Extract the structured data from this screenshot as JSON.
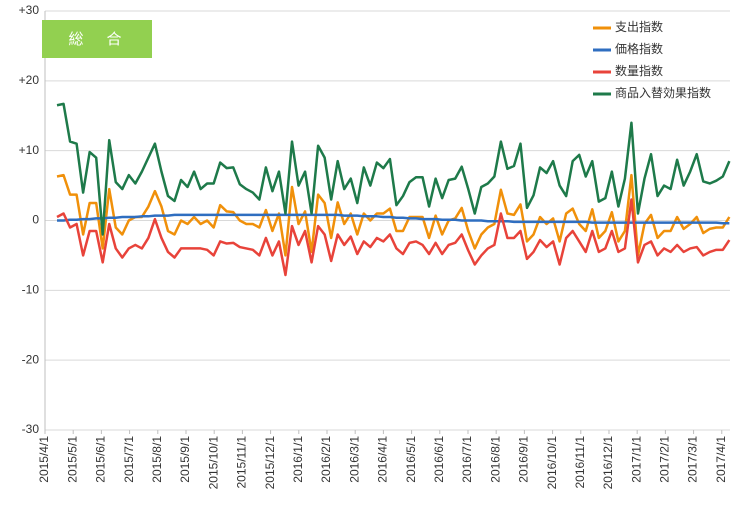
{
  "chart_data": {
    "type": "line",
    "title": "総　合",
    "categories": [
      null,
      null,
      null,
      null,
      null,
      null,
      null,
      null,
      null,
      null,
      null,
      null,
      null,
      null,
      null,
      null,
      null,
      null,
      null,
      null,
      null,
      null,
      null,
      null,
      null,
      null,
      null,
      null,
      null,
      null,
      null,
      null,
      null,
      null,
      null,
      null,
      null,
      null,
      null,
      null,
      null,
      null,
      null,
      null,
      null,
      null,
      null,
      null,
      null,
      null,
      null,
      null,
      null,
      null,
      null,
      null,
      null,
      null,
      null,
      null,
      null,
      null,
      null,
      null,
      null,
      null,
      null,
      null,
      null,
      null,
      null,
      null,
      null,
      null,
      null,
      null,
      null,
      null,
      null,
      null,
      null,
      null,
      null,
      null,
      null,
      null,
      null,
      null,
      null,
      null,
      null,
      null,
      null,
      null,
      null,
      null,
      null,
      null,
      null,
      null,
      null,
      null,
      null,
      null
    ],
    "xlim": [
      -1.84,
      103.1
    ],
    "xticks": [
      {
        "value": -1.84,
        "label": "2015/4/1"
      },
      {
        "value": 2.48,
        "label": "2015/5/1"
      },
      {
        "value": 6.8,
        "label": "2015/6/1"
      },
      {
        "value": 11.12,
        "label": "2015/7/1"
      },
      {
        "value": 15.44,
        "label": "2015/8/1"
      },
      {
        "value": 19.76,
        "label": "2015/9/1"
      },
      {
        "value": 24.08,
        "label": "2015/10/1"
      },
      {
        "value": 28.4,
        "label": "2015/11/1"
      },
      {
        "value": 32.72,
        "label": "2015/12/1"
      },
      {
        "value": 37.04,
        "label": "2016/1/1"
      },
      {
        "value": 41.36,
        "label": "2016/2/1"
      },
      {
        "value": 45.68,
        "label": "2016/3/1"
      },
      {
        "value": 50.0,
        "label": "2016/4/1"
      },
      {
        "value": 54.32,
        "label": "2016/5/1"
      },
      {
        "value": 58.64,
        "label": "2016/6/1"
      },
      {
        "value": 62.96,
        "label": "2016/7/1"
      },
      {
        "value": 67.28,
        "label": "2016/8/1"
      },
      {
        "value": 71.6,
        "label": "2016/9/1"
      },
      {
        "value": 75.92,
        "label": "2016/10/1"
      },
      {
        "value": 80.24,
        "label": "2016/11/1"
      },
      {
        "value": 84.56,
        "label": "2016/12/1"
      },
      {
        "value": 88.88,
        "label": "2017/1/1"
      },
      {
        "value": 93.2,
        "label": "2017/2/1"
      },
      {
        "value": 97.52,
        "label": "2017/3/1"
      },
      {
        "value": 101.84,
        "label": "2017/4/1"
      }
    ],
    "ylim": [
      -30,
      30
    ],
    "yticks": [
      {
        "value": 30,
        "label": "+30"
      },
      {
        "value": 20,
        "label": "+20"
      },
      {
        "value": 10,
        "label": "+10"
      },
      0,
      -10,
      -20,
      -30
    ],
    "grid": true,
    "legend": "top-right",
    "series": [
      {
        "name": "支出指数",
        "color": "#f0900a",
        "values": [
          6.3,
          6.5,
          3.7,
          3.7,
          -2,
          2.5,
          2.5,
          -4,
          4.5,
          -1,
          -2,
          0,
          0.5,
          0.5,
          2,
          4.2,
          2,
          -1.5,
          -2,
          0,
          -0.5,
          0.5,
          -0.5,
          0,
          -1,
          2.2,
          1.3,
          1.2,
          0,
          -0.5,
          -0.5,
          -1,
          1.5,
          -1.5,
          1,
          -5,
          4.8,
          -0.5,
          1.3,
          -4.5,
          3.7,
          2.5,
          -2.5,
          2.6,
          -0.5,
          1,
          -2,
          1,
          0,
          1,
          1,
          1.7,
          -1.5,
          -1.5,
          0.5,
          0.5,
          0.5,
          -2.5,
          0.7,
          -2,
          0,
          0.3,
          1.8,
          -1.5,
          -4,
          -2,
          -1,
          -0.5,
          4.4,
          1,
          0.8,
          2.3,
          -3,
          -2,
          0.5,
          -0.5,
          0.3,
          -3,
          1,
          1.7,
          -0.5,
          -1.5,
          1.6,
          -2.5,
          -1.5,
          1.2,
          -3,
          -1.5,
          6.5,
          -5,
          -0.5,
          0.8,
          -2.5,
          -1.5,
          -1.5,
          0.5,
          -1.2,
          -0.5,
          0.5,
          -1.8,
          -1.2,
          -1,
          -1,
          0.5
        ]
      },
      {
        "name": "価格指数",
        "color": "#2f6ec0",
        "values": [
          0,
          0,
          0.1,
          0.1,
          0.2,
          0.2,
          0.3,
          0.3,
          0.4,
          0.4,
          0.5,
          0.5,
          0.5,
          0.6,
          0.6,
          0.7,
          0.7,
          0.7,
          0.8,
          0.8,
          0.8,
          0.8,
          0.8,
          0.8,
          0.8,
          0.8,
          0.8,
          0.8,
          0.8,
          0.8,
          0.8,
          0.8,
          0.8,
          0.8,
          0.8,
          0.8,
          0.8,
          0.8,
          0.8,
          0.8,
          0.8,
          0.8,
          0.8,
          0.8,
          0.7,
          0.7,
          0.7,
          0.6,
          0.6,
          0.6,
          0.5,
          0.5,
          0.4,
          0.4,
          0.3,
          0.3,
          0.2,
          0.2,
          0.2,
          0.1,
          0.1,
          0.1,
          0,
          0,
          0,
          0,
          -0.1,
          -0.1,
          -0.1,
          -0.1,
          -0.2,
          -0.2,
          -0.2,
          -0.2,
          -0.2,
          -0.2,
          -0.2,
          -0.2,
          -0.2,
          -0.2,
          -0.2,
          -0.2,
          -0.3,
          -0.3,
          -0.3,
          -0.3,
          -0.3,
          -0.3,
          -0.3,
          -0.3,
          -0.3,
          -0.3,
          -0.3,
          -0.3,
          -0.3,
          -0.3,
          -0.3,
          -0.3,
          -0.3,
          -0.3,
          -0.3,
          -0.3,
          -0.4,
          -0.4
        ]
      },
      {
        "name": "数量指数",
        "color": "#e8433a",
        "values": [
          0.5,
          1,
          -1,
          -0.5,
          -5,
          -1.5,
          -1.5,
          -6,
          -0.5,
          -4,
          -5.3,
          -4,
          -3.5,
          -4,
          -2.5,
          0.2,
          -2.5,
          -4.5,
          -5.3,
          -4,
          -4,
          -4,
          -4,
          -4.2,
          -5,
          -3,
          -3.3,
          -3.2,
          -3.8,
          -4,
          -4.2,
          -5,
          -2.5,
          -5,
          -3,
          -7.8,
          -0.8,
          -3.5,
          -1.5,
          -6,
          -0.8,
          -2,
          -5.8,
          -2,
          -3.5,
          -2.3,
          -4.8,
          -3,
          -3.8,
          -2.5,
          -3,
          -2,
          -4,
          -4.8,
          -3.2,
          -3,
          -3.5,
          -4.8,
          -3.2,
          -4.8,
          -3.5,
          -3.2,
          -2,
          -4.3,
          -6.3,
          -5,
          -4,
          -3.5,
          1,
          -2.5,
          -2.5,
          -1.5,
          -5.5,
          -4.5,
          -2.8,
          -3.8,
          -3,
          -6.3,
          -2.5,
          -1.5,
          -3,
          -4.5,
          -1.5,
          -4.5,
          -4,
          -1.5,
          -4.5,
          -4,
          3,
          -6,
          -3.5,
          -3,
          -5,
          -4,
          -4.5,
          -3.5,
          -4.5,
          -4,
          -3.8,
          -5,
          -4.5,
          -4.2,
          -4.2,
          -2.8
        ]
      },
      {
        "name": "商品入替効果指数",
        "color": "#1e7a4a",
        "values": [
          16.5,
          16.7,
          11.3,
          11,
          4,
          9.8,
          9,
          -2,
          11.5,
          5.5,
          4.5,
          6.5,
          5.3,
          7,
          9,
          11,
          7,
          3.5,
          2.8,
          5.8,
          4.8,
          7,
          4.5,
          5.3,
          5.3,
          8.3,
          7.5,
          7.6,
          5.2,
          4.5,
          4,
          3,
          7.6,
          4.2,
          7,
          1,
          11.3,
          5,
          7,
          1,
          10.7,
          9,
          3,
          8.5,
          4.5,
          6,
          2.5,
          7.6,
          5,
          8.3,
          7.5,
          8.8,
          2.2,
          3.5,
          5.5,
          6.2,
          6.2,
          2,
          6,
          3.2,
          5.8,
          6,
          7.7,
          4.5,
          1,
          4.8,
          5.3,
          6.3,
          11.3,
          7.4,
          7.8,
          11,
          1.8,
          3.6,
          7.6,
          6.8,
          8.5,
          5,
          3.5,
          8.5,
          9.4,
          6.3,
          8.5,
          2.7,
          3.2,
          7,
          2,
          6,
          14,
          1,
          6,
          9.5,
          3.5,
          5,
          4.5,
          8.7,
          5,
          7,
          9.5,
          5.6,
          5.3,
          5.7,
          6.3,
          8.5
        ]
      }
    ]
  }
}
